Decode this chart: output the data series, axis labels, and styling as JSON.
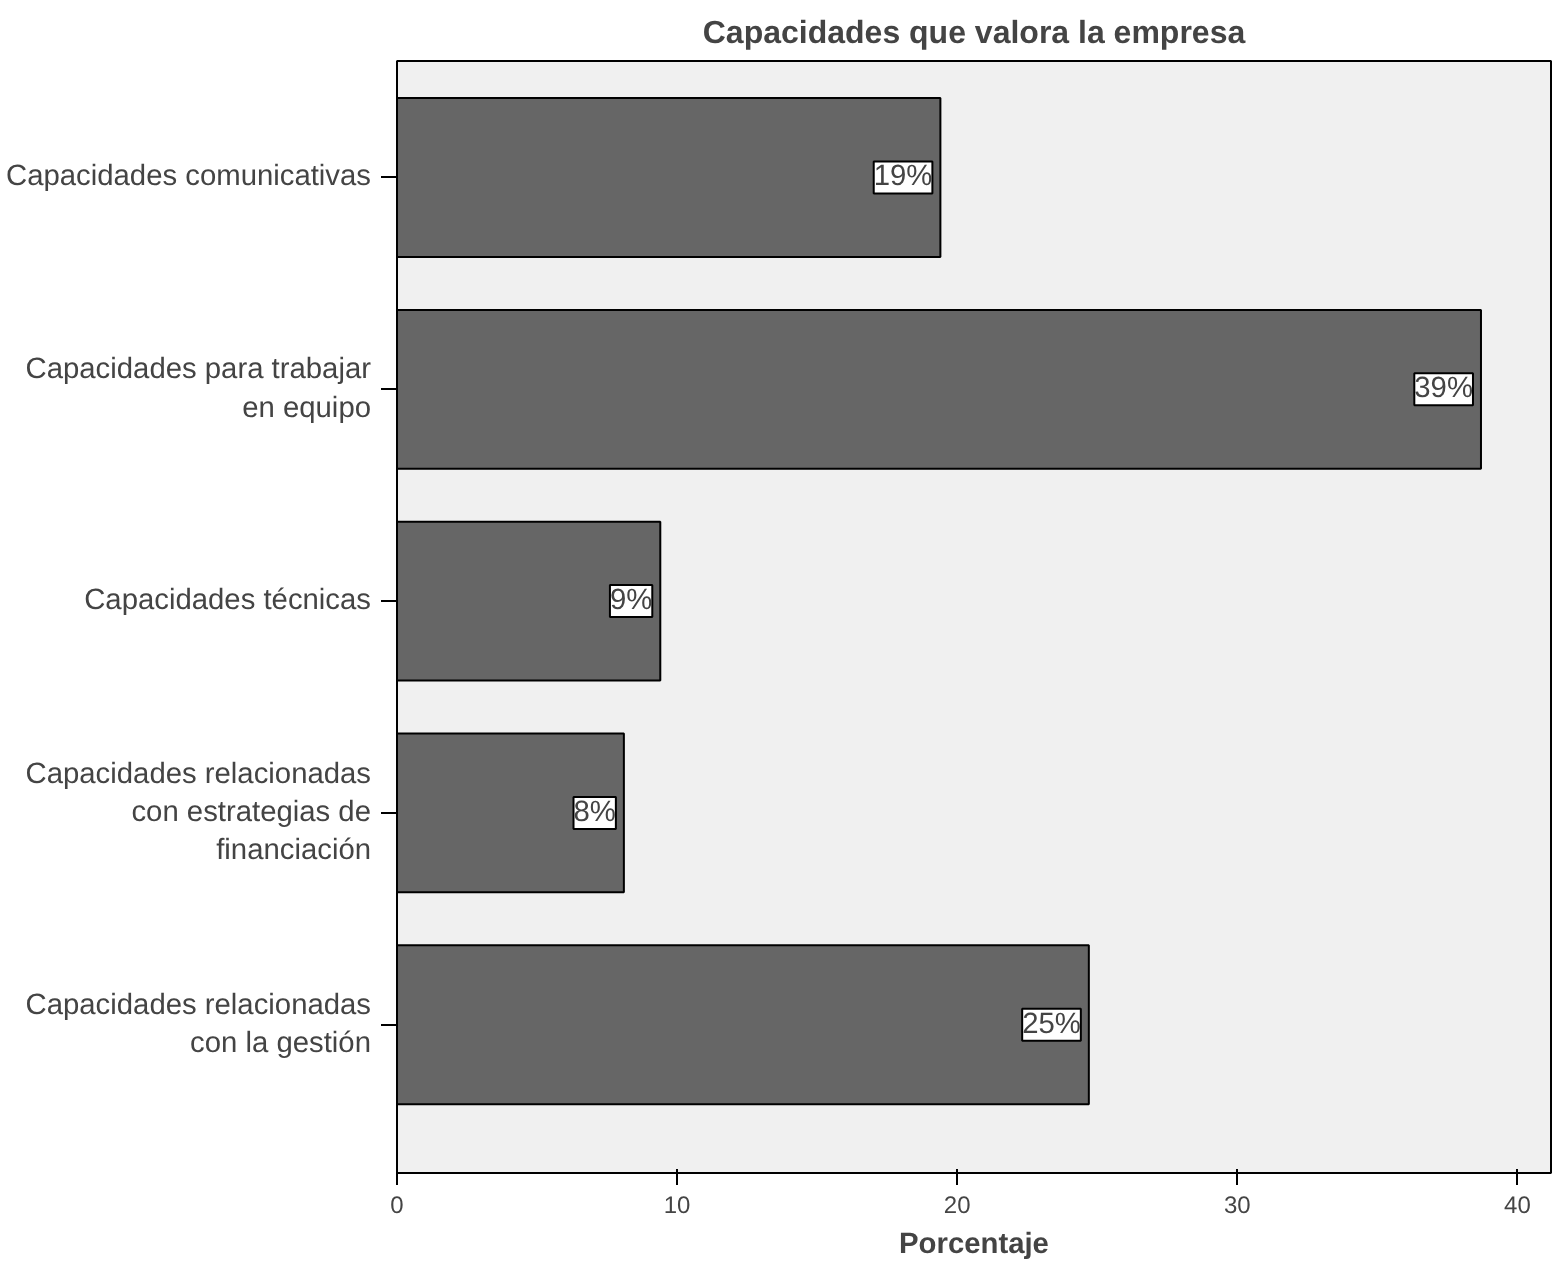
{
  "chart_data": {
    "type": "bar",
    "orientation": "horizontal",
    "title": "Capacidades que valora la empresa",
    "xlabel": "Porcentaje",
    "categories": [
      "Capacidades comunicativas",
      "Capacidades para trabajar en equipo",
      "Capacidades técnicas",
      "Capacidades relacionadas con estrategias de financiación",
      "Capacidades relacionadas con la gestión"
    ],
    "values": [
      19.4,
      38.7,
      9.4,
      8.1,
      24.7
    ],
    "value_labels": [
      "19%",
      "39%",
      "9%",
      "8%",
      "25%"
    ],
    "color": "#666666",
    "xlim": [
      0,
      41.2
    ],
    "xticks": [
      0,
      10,
      20,
      30,
      40
    ],
    "grid": false
  }
}
